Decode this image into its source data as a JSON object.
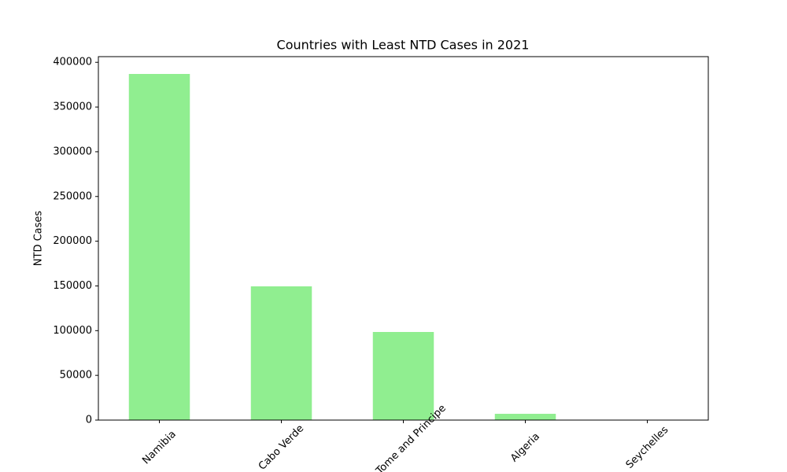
{
  "chart_data": {
    "type": "bar",
    "title": "Countries with Least NTD Cases in 2021",
    "y_label": "NTD Cases",
    "categories": [
      "Namibia",
      "Cabo Verde",
      "Sao Tome and Principe",
      "Algeria",
      "Seychelles"
    ],
    "values": [
      387000,
      149500,
      98500,
      7000,
      50
    ],
    "color": "#90ee90",
    "ylim": [
      0,
      406350
    ],
    "yticks": [
      0,
      50000,
      100000,
      150000,
      200000,
      250000,
      300000,
      350000,
      400000
    ],
    "grid": false
  }
}
